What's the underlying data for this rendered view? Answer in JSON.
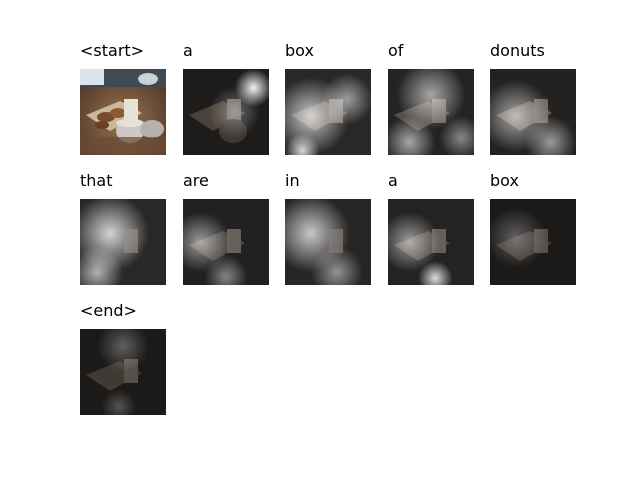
{
  "figure": {
    "words": [
      "<start>",
      "a",
      "box",
      "of",
      "donuts",
      "that",
      "are",
      "in",
      "a",
      "box",
      "<end>"
    ],
    "tile_kind": [
      "original",
      "attention",
      "attention",
      "attention",
      "attention",
      "attention",
      "attention",
      "attention",
      "attention",
      "attention",
      "attention"
    ]
  }
}
